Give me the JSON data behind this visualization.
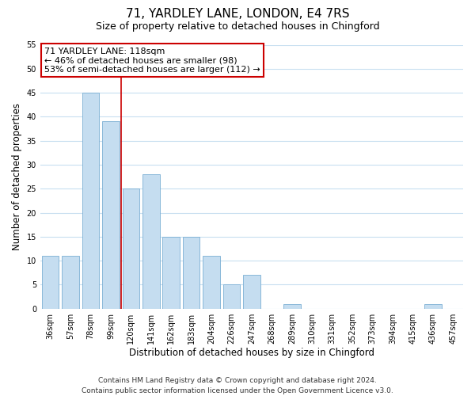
{
  "title": "71, YARDLEY LANE, LONDON, E4 7RS",
  "subtitle": "Size of property relative to detached houses in Chingford",
  "xlabel": "Distribution of detached houses by size in Chingford",
  "ylabel": "Number of detached properties",
  "categories": [
    "36sqm",
    "57sqm",
    "78sqm",
    "99sqm",
    "120sqm",
    "141sqm",
    "162sqm",
    "183sqm",
    "204sqm",
    "226sqm",
    "247sqm",
    "268sqm",
    "289sqm",
    "310sqm",
    "331sqm",
    "352sqm",
    "373sqm",
    "394sqm",
    "415sqm",
    "436sqm",
    "457sqm"
  ],
  "values": [
    11,
    11,
    45,
    39,
    25,
    28,
    15,
    15,
    11,
    5,
    7,
    0,
    1,
    0,
    0,
    0,
    0,
    0,
    0,
    1,
    0
  ],
  "bar_color": "#c5ddf0",
  "bar_edge_color": "#7bafd4",
  "red_line_after_index": 3,
  "annotation_line1": "71 YARDLEY LANE: 118sqm",
  "annotation_line2": "← 46% of detached houses are smaller (98)",
  "annotation_line3": "53% of semi-detached houses are larger (112) →",
  "annotation_box_facecolor": "#ffffff",
  "annotation_box_edgecolor": "#cc0000",
  "ylim": [
    0,
    55
  ],
  "yticks": [
    0,
    5,
    10,
    15,
    20,
    25,
    30,
    35,
    40,
    45,
    50,
    55
  ],
  "footer_line1": "Contains HM Land Registry data © Crown copyright and database right 2024.",
  "footer_line2": "Contains public sector information licensed under the Open Government Licence v3.0.",
  "bg_color": "#ffffff",
  "grid_color": "#c8dff0",
  "title_fontsize": 11,
  "subtitle_fontsize": 9,
  "axis_label_fontsize": 8.5,
  "tick_fontsize": 7,
  "annotation_fontsize": 8,
  "footer_fontsize": 6.5
}
